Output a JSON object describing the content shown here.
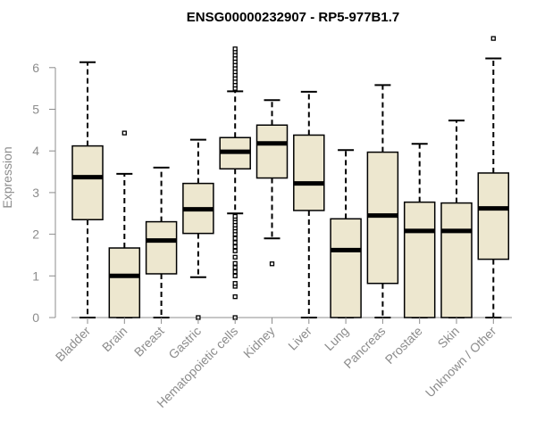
{
  "chart_data": {
    "type": "boxplot",
    "title": "ENSG00000232907 - RP5-977B1.7",
    "xlabel": "",
    "ylabel": "Expression",
    "ylim": [
      0,
      6.7
    ],
    "yticks": [
      0,
      1,
      2,
      3,
      4,
      5,
      6
    ],
    "box_color": "#ede7cf",
    "categories": [
      "Bladder",
      "Brain",
      "Breast",
      "Gastric",
      "Hematopoietic cells",
      "Kidney",
      "Liver",
      "Lung",
      "Pancreas",
      "Prostate",
      "Skin",
      "Unknown / Other"
    ],
    "boxes": [
      {
        "name": "Bladder",
        "whisker_low": 0.0,
        "q1": 2.35,
        "median": 3.37,
        "q3": 4.12,
        "whisker_high": 6.13,
        "outliers": []
      },
      {
        "name": "Brain",
        "whisker_low": 0.0,
        "q1": 0.0,
        "median": 1.0,
        "q3": 1.67,
        "whisker_high": 3.45,
        "outliers": [
          4.43
        ]
      },
      {
        "name": "Breast",
        "whisker_low": 0.0,
        "q1": 1.05,
        "median": 1.85,
        "q3": 2.3,
        "whisker_high": 3.6,
        "outliers": []
      },
      {
        "name": "Gastric",
        "whisker_low": 0.97,
        "q1": 2.02,
        "median": 2.6,
        "q3": 3.22,
        "whisker_high": 4.27,
        "outliers": [
          0.0
        ]
      },
      {
        "name": "Hematopoietic cells",
        "whisker_low": 2.5,
        "q1": 3.57,
        "median": 3.98,
        "q3": 4.32,
        "whisker_high": 5.43,
        "outliers": [
          0.0,
          0.5,
          0.75,
          0.82,
          1.0,
          1.1,
          1.2,
          1.3,
          1.45,
          1.6,
          1.7,
          1.8,
          1.9,
          2.0,
          2.08,
          2.15,
          2.22,
          2.3,
          2.37,
          2.43,
          5.5,
          5.58,
          5.66,
          5.74,
          5.82,
          5.9,
          5.98,
          6.06,
          6.14,
          6.22,
          6.3,
          6.38,
          6.45
        ]
      },
      {
        "name": "Kidney",
        "whisker_low": 1.9,
        "q1": 3.35,
        "median": 4.18,
        "q3": 4.62,
        "whisker_high": 5.22,
        "outliers": [
          1.29
        ]
      },
      {
        "name": "Liver",
        "whisker_low": 0.0,
        "q1": 2.57,
        "median": 3.22,
        "q3": 4.38,
        "whisker_high": 5.42,
        "outliers": []
      },
      {
        "name": "Lung",
        "whisker_low": 0.0,
        "q1": 0.0,
        "median": 1.62,
        "q3": 2.37,
        "whisker_high": 4.02,
        "outliers": []
      },
      {
        "name": "Pancreas",
        "whisker_low": 0.0,
        "q1": 0.82,
        "median": 2.45,
        "q3": 3.97,
        "whisker_high": 5.58,
        "outliers": []
      },
      {
        "name": "Prostate",
        "whisker_low": 0.0,
        "q1": 0.0,
        "median": 2.08,
        "q3": 2.77,
        "whisker_high": 4.17,
        "outliers": []
      },
      {
        "name": "Skin",
        "whisker_low": 0.0,
        "q1": 0.0,
        "median": 2.08,
        "q3": 2.75,
        "whisker_high": 4.73,
        "outliers": []
      },
      {
        "name": "Unknown / Other",
        "whisker_low": 0.0,
        "q1": 1.4,
        "median": 2.62,
        "q3": 3.47,
        "whisker_high": 6.22,
        "outliers": [
          6.7
        ]
      }
    ]
  }
}
